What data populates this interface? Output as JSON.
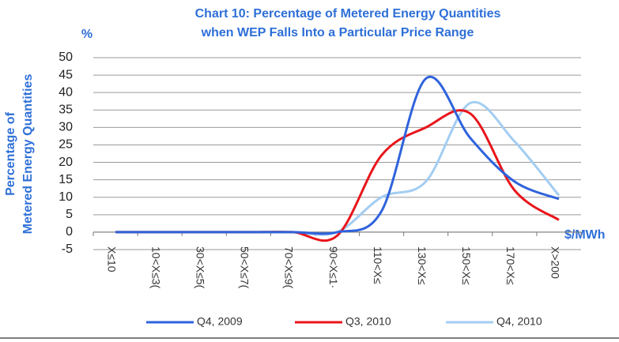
{
  "chart_data": {
    "type": "line",
    "title": [
      "Chart 10: Percentage of Metered Energy Quantities",
      "when WEP Falls Into a Particular Price Range"
    ],
    "y_unit": "%",
    "ylabel": [
      "Percentage of",
      "Metered Energy Quantities"
    ],
    "xlabel": "$/MWh",
    "categories": [
      "X≤10",
      "10<X≤3(",
      "30<X≤5(",
      "50<X≤7(",
      "70<X≤9(",
      "90<X≤1·",
      "110<X≤",
      "130<X≤",
      "150<X≤",
      "170<X≤",
      "X>200"
    ],
    "series": [
      {
        "name": "Q4, 2009",
        "color": "#2f63dc",
        "values": [
          0,
          0,
          0,
          0,
          0,
          0,
          6,
          44,
          27,
          14.5,
          9.5
        ]
      },
      {
        "name": "Q3, 2010",
        "color": "#e8151b",
        "values": [
          0,
          0,
          0,
          0,
          0,
          -1,
          22,
          30,
          34,
          12,
          3.5
        ]
      },
      {
        "name": "Q4, 2010",
        "color": "#a3cdf2",
        "values": [
          0,
          0,
          0,
          0,
          0,
          0,
          10,
          14.5,
          37,
          26,
          10.5
        ]
      }
    ],
    "ylim": [
      -5,
      50
    ],
    "yticks": [
      -5,
      0,
      5,
      10,
      15,
      20,
      25,
      30,
      35,
      40,
      45,
      50
    ],
    "grid": true
  }
}
